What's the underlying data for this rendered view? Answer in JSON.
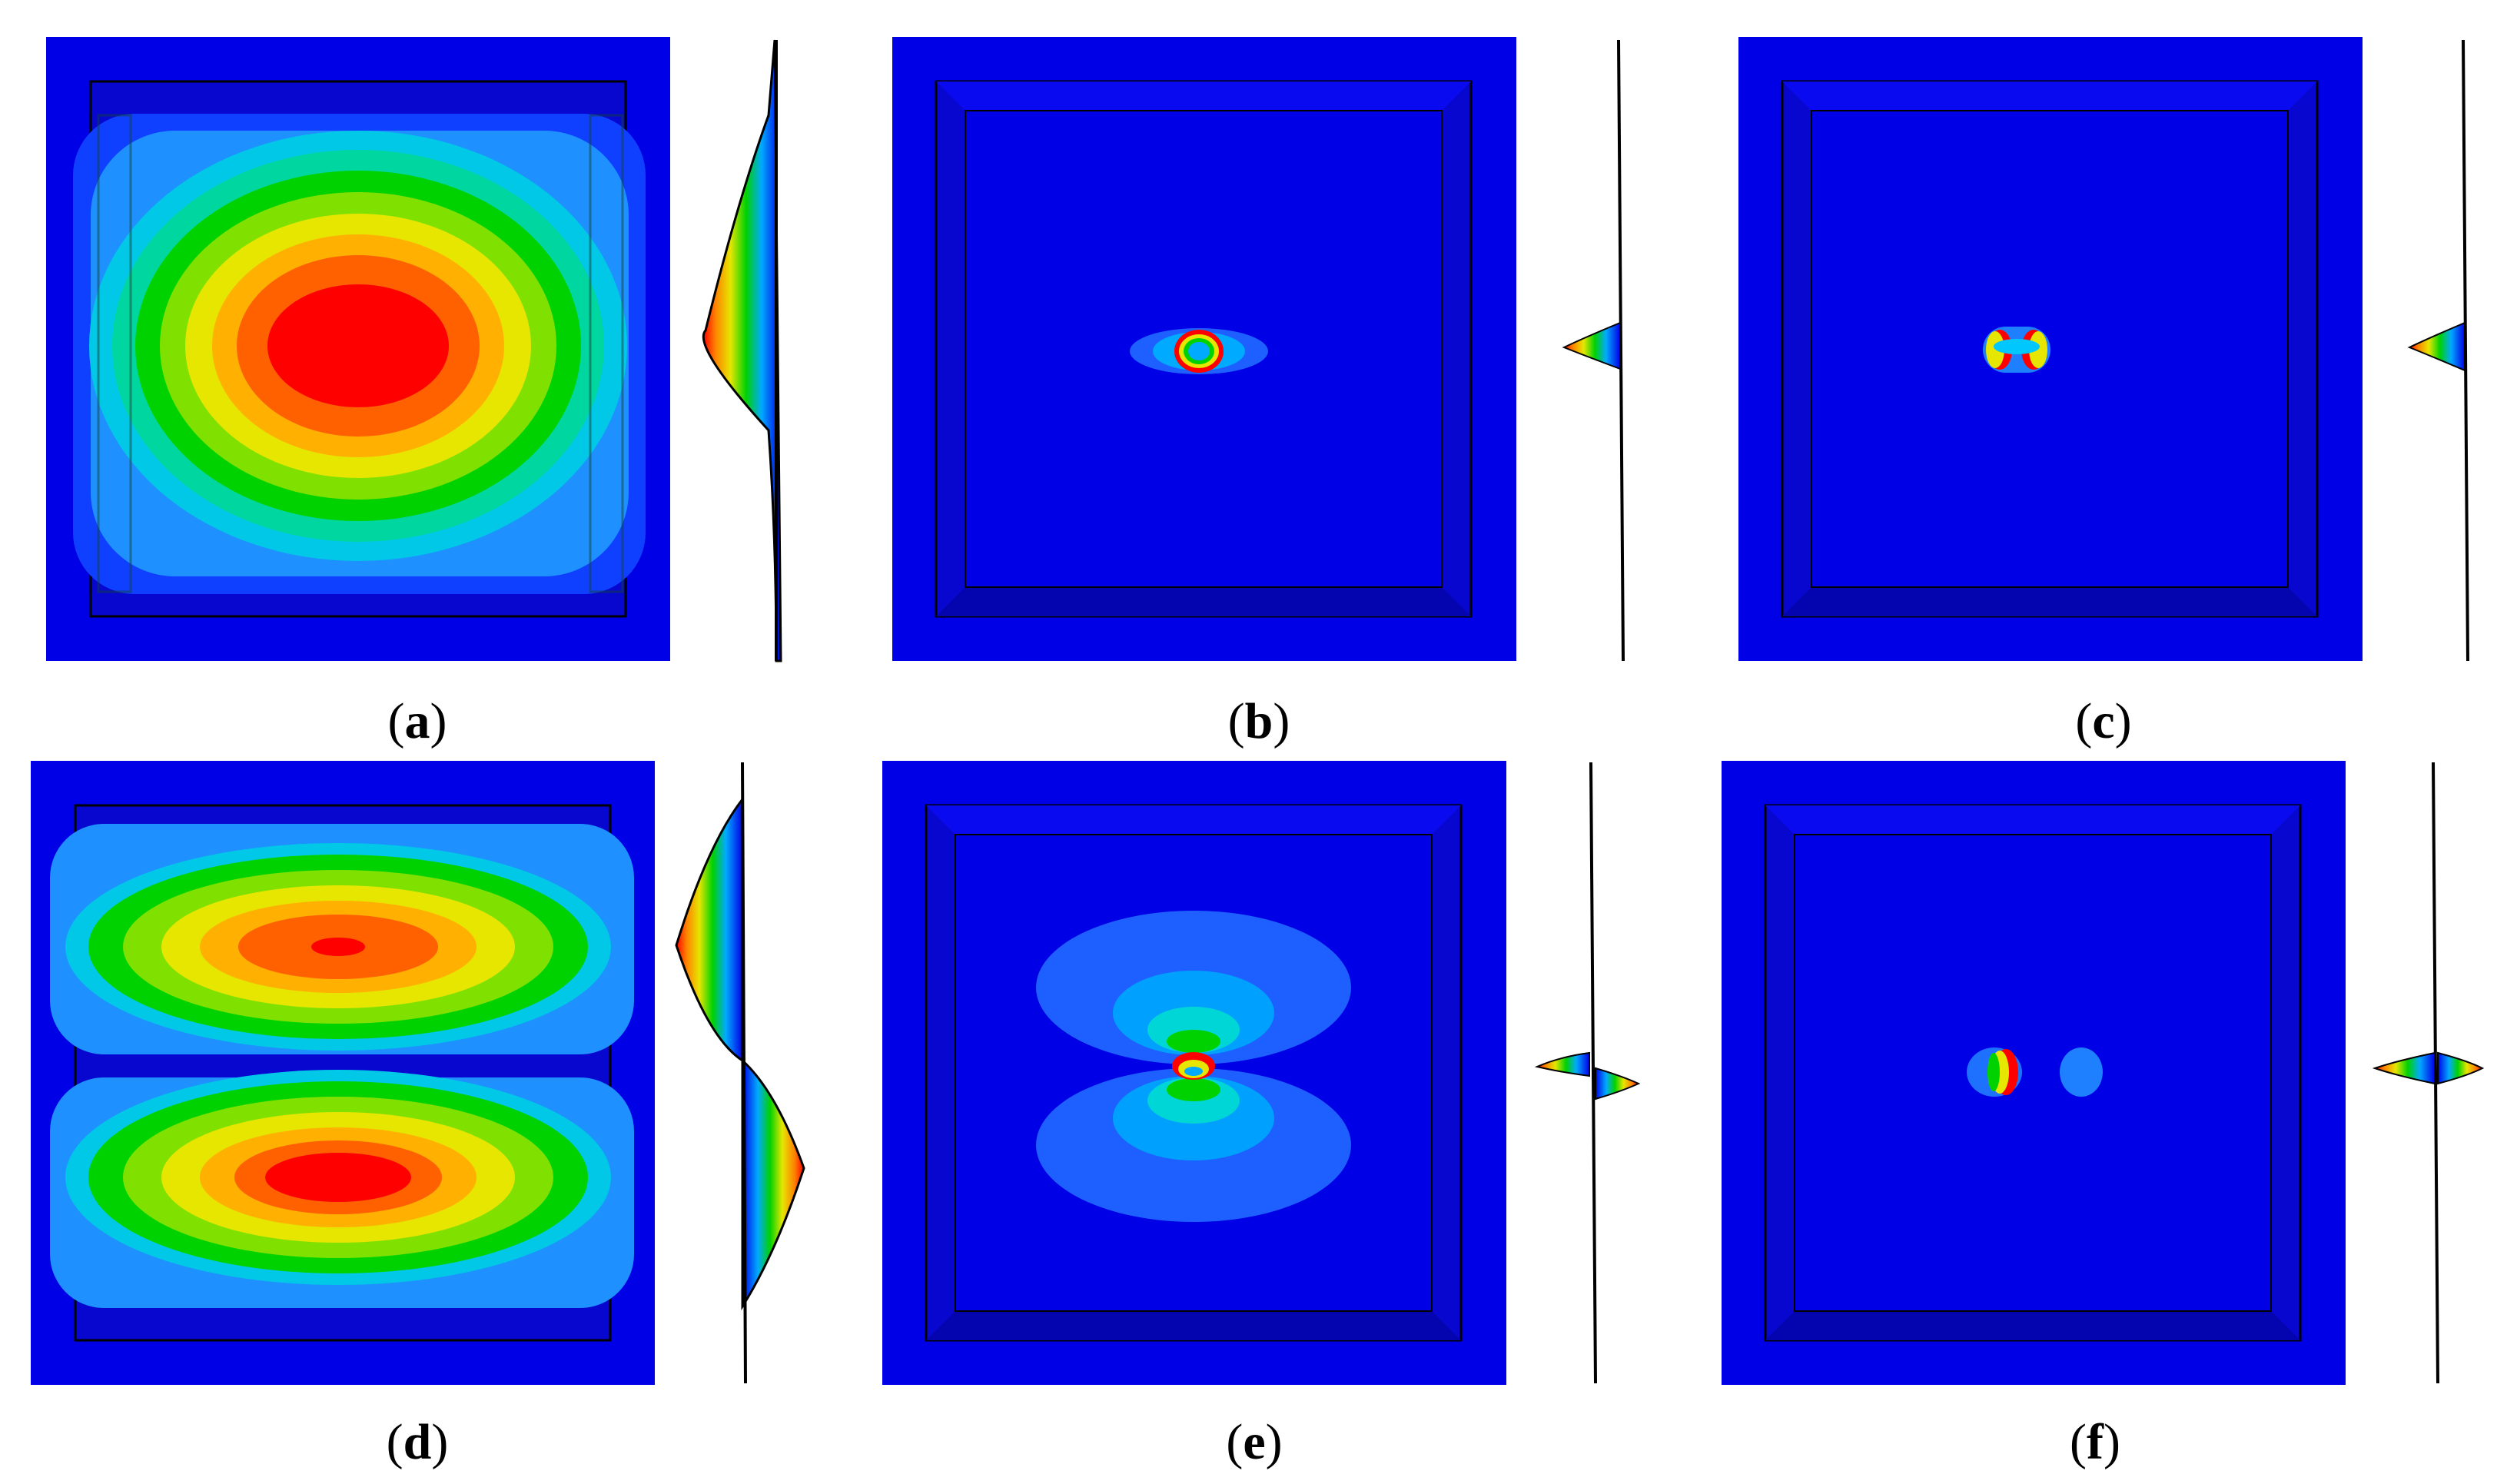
{
  "figure": {
    "panels": [
      {
        "id": "a",
        "mode": "single-lobe"
      },
      {
        "id": "b",
        "mode": "local-ring"
      },
      {
        "id": "c",
        "mode": "local-split"
      },
      {
        "id": "d",
        "mode": "two-lobe"
      },
      {
        "id": "e",
        "mode": "dipole-wide"
      },
      {
        "id": "f",
        "mode": "dipole-split"
      }
    ],
    "colors": {
      "background": "#0000e6",
      "plate_dark": "#0606c8",
      "plate_light": "#1a1aff",
      "red": "#ff0000",
      "orange": "#ff8000",
      "yellow": "#e6e600",
      "green": "#00d200",
      "cyan": "#00d6d6",
      "light_blue": "#1e90ff"
    }
  }
}
